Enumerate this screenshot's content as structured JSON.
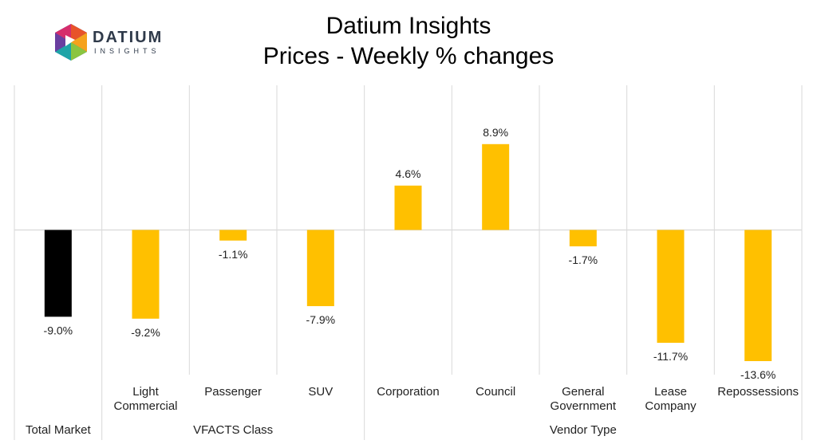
{
  "logo": {
    "word": "DATIUM",
    "sub": "INSIGHTS"
  },
  "title": "Datium Insights",
  "subtitle": "Prices - Weekly % changes",
  "colors": {
    "highlight": "#000000",
    "bar": "#FFC000",
    "grid": "#d9d9d9"
  },
  "chart_data": {
    "type": "bar",
    "title": "Datium Insights",
    "subtitle": "Prices - Weekly % changes",
    "categories": [
      "",
      "Light Commercial",
      "Passenger",
      "SUV",
      "Corporation",
      "Council",
      "General Government",
      "Lease Company",
      "Repossessions"
    ],
    "category_lines": [
      [
        ""
      ],
      [
        "Light",
        "Commercial"
      ],
      [
        "Passenger"
      ],
      [
        "SUV"
      ],
      [
        "Corporation"
      ],
      [
        "Council"
      ],
      [
        "General",
        "Government"
      ],
      [
        "Lease",
        "Company"
      ],
      [
        "Repossessions"
      ]
    ],
    "groups": [
      {
        "label": "Total Market",
        "start": 0,
        "end": 0
      },
      {
        "label": "VFACTS Class",
        "start": 1,
        "end": 3
      },
      {
        "label": "Vendor Type",
        "start": 4,
        "end": 8
      }
    ],
    "values": [
      -9.0,
      -9.2,
      -1.1,
      -7.9,
      4.6,
      8.9,
      -1.7,
      -11.7,
      -13.6
    ],
    "data_labels": [
      "-9.0%",
      "-9.2%",
      "-1.1%",
      "-7.9%",
      "4.6%",
      "8.9%",
      "-1.7%",
      "-11.7%",
      "-13.6%"
    ],
    "highlight_index": 0,
    "unit": "%",
    "ylim": [
      -15.5,
      15.0
    ],
    "grid": false,
    "legend": "none"
  }
}
